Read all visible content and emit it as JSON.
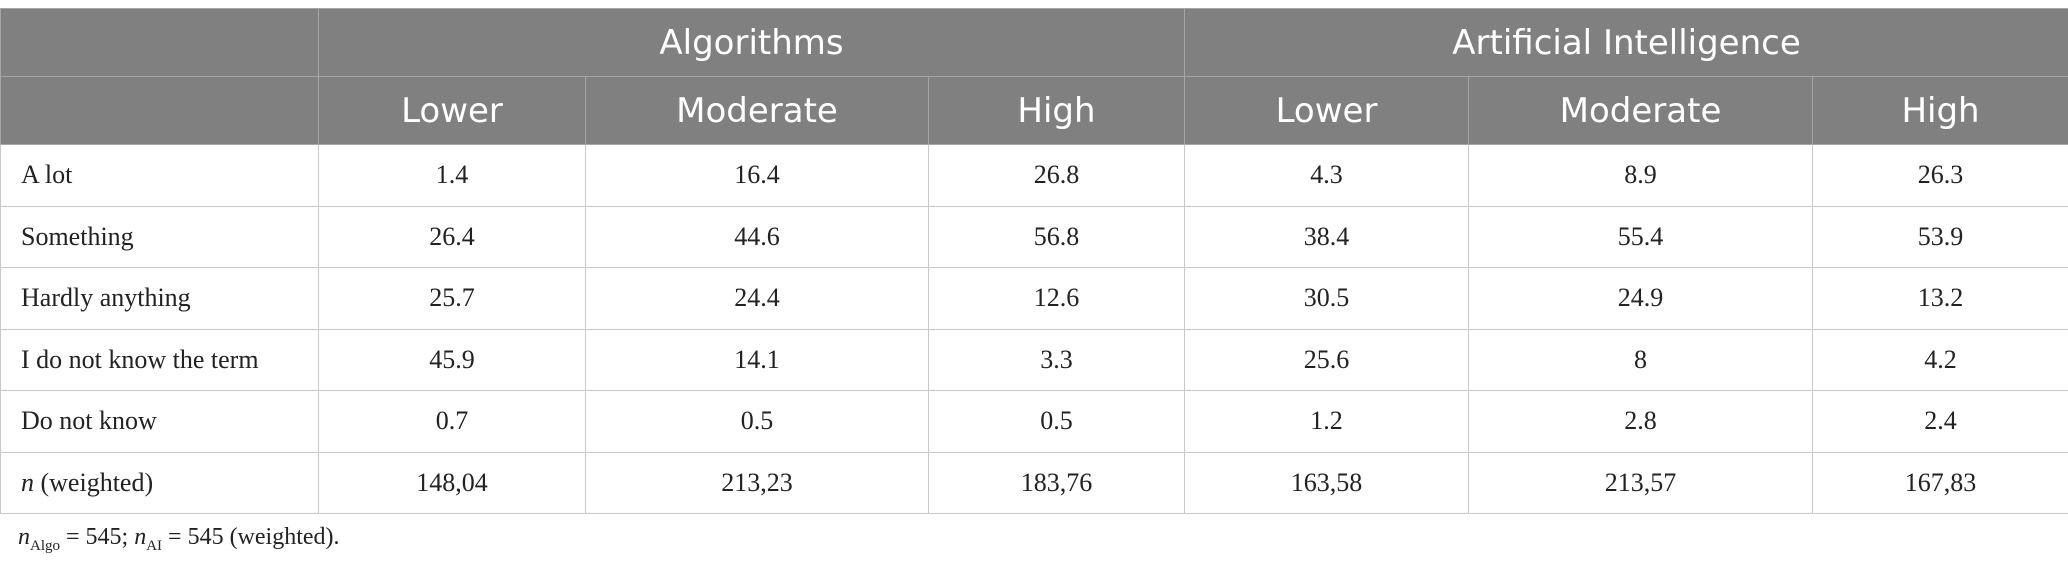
{
  "header": {
    "groups": [
      "Algorithms",
      "Artificial Intelligence"
    ],
    "subheaders": [
      "Lower",
      "Moderate",
      "High",
      "Lower",
      "Moderate",
      "High"
    ]
  },
  "rows": [
    {
      "label": "A lot",
      "values": [
        "1.4",
        "16.4",
        "26.8",
        "4.3",
        "8.9",
        "26.3"
      ]
    },
    {
      "label": "Something",
      "values": [
        "26.4",
        "44.6",
        "56.8",
        "38.4",
        "55.4",
        "53.9"
      ]
    },
    {
      "label": "Hardly anything",
      "values": [
        "25.7",
        "24.4",
        "12.6",
        "30.5",
        "24.9",
        "13.2"
      ]
    },
    {
      "label": "I do not know the term",
      "values": [
        "45.9",
        "14.1",
        "3.3",
        "25.6",
        "8",
        "4.2"
      ]
    },
    {
      "label": "Do not know",
      "values": [
        "0.7",
        "0.5",
        "0.5",
        "1.2",
        "2.8",
        "2.4"
      ]
    }
  ],
  "n_row": {
    "label_n": "n",
    "label_rest": " (weighted)",
    "values": [
      "148,04",
      "213,23",
      "183,76",
      "163,58",
      "213,57",
      "167,83"
    ]
  },
  "footnote": {
    "n1": "n",
    "sub1": "Algo",
    "eq1": " = 545; ",
    "n2": "n",
    "sub2": "AI",
    "eq2": " = 545 (weighted)."
  }
}
